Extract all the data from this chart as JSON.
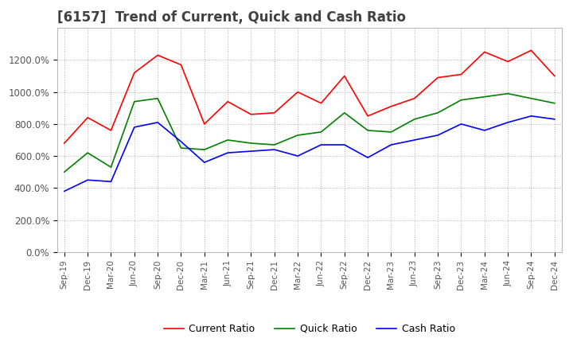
{
  "title": "[6157]  Trend of Current, Quick and Cash Ratio",
  "x_labels": [
    "Sep-19",
    "Dec-19",
    "Mar-20",
    "Jun-20",
    "Sep-20",
    "Dec-20",
    "Mar-21",
    "Jun-21",
    "Sep-21",
    "Dec-21",
    "Mar-22",
    "Jun-22",
    "Sep-22",
    "Dec-22",
    "Mar-23",
    "Jun-23",
    "Sep-23",
    "Dec-23",
    "Mar-24",
    "Jun-24",
    "Sep-24",
    "Dec-24"
  ],
  "current_ratio": [
    680,
    840,
    760,
    1120,
    1230,
    1170,
    800,
    940,
    860,
    870,
    1000,
    930,
    1100,
    850,
    910,
    960,
    1090,
    1110,
    1250,
    1190,
    1260,
    1100
  ],
  "quick_ratio": [
    500,
    620,
    530,
    940,
    960,
    650,
    640,
    700,
    680,
    670,
    730,
    750,
    870,
    760,
    750,
    830,
    870,
    950,
    970,
    990,
    960,
    930
  ],
  "cash_ratio": [
    380,
    450,
    440,
    780,
    810,
    690,
    560,
    620,
    630,
    640,
    600,
    670,
    670,
    590,
    670,
    700,
    730,
    800,
    760,
    810,
    850,
    830
  ],
  "current_color": "#ff0000",
  "quick_color": "#008000",
  "cash_color": "#0000ff",
  "ylim": [
    0,
    1400
  ],
  "ytick_values": [
    0,
    200,
    400,
    600,
    800,
    1000,
    1200
  ],
  "background_color": "#ffffff",
  "grid_color": "#b0b0b0",
  "title_fontsize": 12,
  "legend_labels": [
    "Current Ratio",
    "Quick Ratio",
    "Cash Ratio"
  ]
}
